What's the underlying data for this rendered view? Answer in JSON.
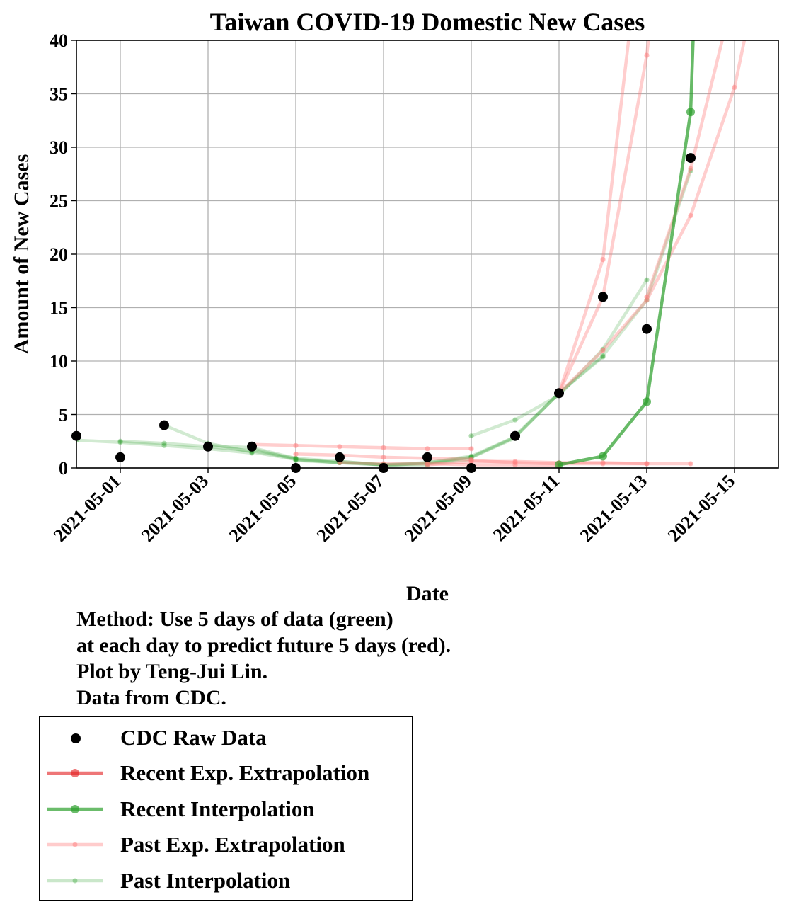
{
  "chart_data": {
    "type": "line",
    "title": "Taiwan COVID-19 Domestic New Cases",
    "xlabel": "Date",
    "ylabel": "Amount of New Cases",
    "xlim": [
      "2021-04-30",
      "2021-05-16"
    ],
    "ylim": [
      0,
      40
    ],
    "xticks": [
      "2021-05-01",
      "2021-05-03",
      "2021-05-05",
      "2021-05-07",
      "2021-05-09",
      "2021-05-11",
      "2021-05-13",
      "2021-05-15"
    ],
    "yticks": [
      0,
      5,
      10,
      15,
      20,
      25,
      30,
      35,
      40
    ],
    "grid": true,
    "legend_position": "below",
    "series": [
      {
        "name": "Past Interpolation",
        "color": "#2ca02c",
        "lines": [
          [
            [
              "2021-04-30",
              2.6
            ],
            [
              "2021-05-01",
              2.4
            ],
            [
              "2021-05-02",
              2.1
            ],
            [
              "2021-05-03",
              1.8
            ],
            [
              "2021-05-04",
              1.4
            ]
          ],
          [
            [
              "2021-05-01",
              2.5
            ],
            [
              "2021-05-02",
              2.3
            ],
            [
              "2021-05-03",
              2.0
            ],
            [
              "2021-05-04",
              1.6
            ],
            [
              "2021-05-05",
              0.9
            ]
          ],
          [
            [
              "2021-05-02",
              4.0
            ],
            [
              "2021-05-03",
              2.3
            ],
            [
              "2021-05-04",
              1.5
            ],
            [
              "2021-05-05",
              0.8
            ],
            [
              "2021-05-06",
              0.5
            ]
          ],
          [
            [
              "2021-05-03",
              2.1
            ],
            [
              "2021-05-04",
              1.9
            ],
            [
              "2021-05-05",
              0.9
            ],
            [
              "2021-05-06",
              0.6
            ],
            [
              "2021-05-07",
              0.3
            ]
          ],
          [
            [
              "2021-05-04",
              1.8
            ],
            [
              "2021-05-05",
              0.8
            ],
            [
              "2021-05-06",
              0.5
            ],
            [
              "2021-05-07",
              0.3
            ],
            [
              "2021-05-08",
              0.3
            ]
          ],
          [
            [
              "2021-05-05",
              0.7
            ],
            [
              "2021-05-06",
              0.5
            ],
            [
              "2021-05-07",
              0.3
            ],
            [
              "2021-05-08",
              0.4
            ],
            [
              "2021-05-09",
              0.8
            ]
          ],
          [
            [
              "2021-05-06",
              0.6
            ],
            [
              "2021-05-07",
              0.3
            ],
            [
              "2021-05-08",
              0.5
            ],
            [
              "2021-05-09",
              1.0
            ],
            [
              "2021-05-10",
              2.8
            ]
          ],
          [
            [
              "2021-05-07",
              0.2
            ],
            [
              "2021-05-08",
              0.5
            ],
            [
              "2021-05-09",
              1.1
            ],
            [
              "2021-05-10",
              2.9
            ],
            [
              "2021-05-11",
              7.0
            ]
          ],
          [
            [
              "2021-05-08",
              0.4
            ],
            [
              "2021-05-09",
              1.0
            ],
            [
              "2021-05-10",
              2.9
            ],
            [
              "2021-05-11",
              7.0
            ],
            [
              "2021-05-12",
              10.4
            ]
          ],
          [
            [
              "2021-05-09",
              3.0
            ],
            [
              "2021-05-10",
              4.5
            ],
            [
              "2021-05-11",
              6.8
            ],
            [
              "2021-05-12",
              11.1
            ],
            [
              "2021-05-13",
              17.6
            ]
          ],
          [
            [
              "2021-05-10",
              3.0
            ],
            [
              "2021-05-11",
              7.0
            ],
            [
              "2021-05-12",
              10.5
            ],
            [
              "2021-05-13",
              15.7
            ],
            [
              "2021-05-14",
              27.8
            ]
          ]
        ]
      },
      {
        "name": "Past Exp. Extrapolation",
        "color": "#ff7f7f",
        "lines": [
          [
            [
              "2021-05-04",
              2.2
            ],
            [
              "2021-05-05",
              2.1
            ],
            [
              "2021-05-06",
              2.0
            ],
            [
              "2021-05-07",
              1.9
            ],
            [
              "2021-05-08",
              1.8
            ],
            [
              "2021-05-09",
              1.8
            ]
          ],
          [
            [
              "2021-05-05",
              1.3
            ],
            [
              "2021-05-06",
              1.2
            ],
            [
              "2021-05-07",
              1.0
            ],
            [
              "2021-05-08",
              0.9
            ],
            [
              "2021-05-09",
              0.8
            ]
          ],
          [
            [
              "2021-05-06",
              0.5
            ],
            [
              "2021-05-07",
              0.4
            ],
            [
              "2021-05-08",
              0.4
            ],
            [
              "2021-05-09",
              0.3
            ],
            [
              "2021-05-10",
              0.3
            ],
            [
              "2021-05-11",
              0.2
            ]
          ],
          [
            [
              "2021-05-08",
              0.3
            ],
            [
              "2021-05-09",
              0.6
            ],
            [
              "2021-05-10",
              0.6
            ],
            [
              "2021-05-11",
              0.5
            ],
            [
              "2021-05-12",
              0.5
            ],
            [
              "2021-05-13",
              0.4
            ]
          ],
          [
            [
              "2021-05-09",
              0.7
            ],
            [
              "2021-05-10",
              0.5
            ],
            [
              "2021-05-11",
              0.4
            ],
            [
              "2021-05-12",
              0.4
            ],
            [
              "2021-05-13",
              0.4
            ],
            [
              "2021-05-14",
              0.4
            ]
          ],
          [
            [
              "2021-05-11",
              7.0
            ],
            [
              "2021-05-12",
              19.5
            ],
            [
              "2021-05-12.6",
              40.5
            ]
          ],
          [
            [
              "2021-05-11",
              7.0
            ],
            [
              "2021-05-12",
              16.0
            ],
            [
              "2021-05-13",
              38.6
            ],
            [
              "2021-05-13.05",
              40.5
            ]
          ],
          [
            [
              "2021-05-11",
              7.0
            ],
            [
              "2021-05-12",
              11.0
            ],
            [
              "2021-05-13",
              15.7
            ],
            [
              "2021-05-14",
              23.6
            ],
            [
              "2021-05-15",
              35.6
            ],
            [
              "2021-05-15.25",
              40.5
            ]
          ],
          [
            [
              "2021-05-13",
              16.0
            ],
            [
              "2021-05-14",
              28.0
            ],
            [
              "2021-05-14.75",
              40.5
            ]
          ]
        ]
      },
      {
        "name": "Recent Interpolation",
        "color": "#2ca02c",
        "points": [
          [
            "2021-05-11",
            0.3
          ],
          [
            "2021-05-12",
            1.1
          ],
          [
            "2021-05-13",
            6.2
          ],
          [
            "2021-05-14",
            33.3
          ],
          [
            "2021-05-14.06",
            40.5
          ]
        ]
      },
      {
        "name": "Recent Exp. Extrapolation",
        "color": "#e31a1c",
        "points": []
      },
      {
        "name": "CDC Raw Data",
        "color": "#000000",
        "points": [
          [
            "2021-04-30",
            3
          ],
          [
            "2021-05-01",
            1
          ],
          [
            "2021-05-02",
            4
          ],
          [
            "2021-05-03",
            2
          ],
          [
            "2021-05-04",
            2
          ],
          [
            "2021-05-05",
            0
          ],
          [
            "2021-05-06",
            1
          ],
          [
            "2021-05-07",
            0
          ],
          [
            "2021-05-08",
            1
          ],
          [
            "2021-05-09",
            0
          ],
          [
            "2021-05-10",
            3
          ],
          [
            "2021-05-11",
            7
          ],
          [
            "2021-05-12",
            16
          ],
          [
            "2021-05-13",
            13
          ],
          [
            "2021-05-14",
            29
          ]
        ]
      }
    ]
  },
  "notes": [
    "Method: Use 5 days of data (green)",
    "at each day to predict future 5 days (red).",
    "Plot by Teng-Jui Lin.",
    "Data from CDC."
  ],
  "legend": [
    {
      "label": "CDC Raw Data",
      "style": "dot",
      "color": "#000000"
    },
    {
      "label": "Recent Exp. Extrapolation",
      "style": "line-marker",
      "color": "#e31a1c"
    },
    {
      "label": "Recent Interpolation",
      "style": "line-marker",
      "color": "#2ca02c"
    },
    {
      "label": "Past Exp. Extrapolation",
      "style": "faint-line",
      "color": "#ff7f7f"
    },
    {
      "label": "Past Interpolation",
      "style": "faint-line",
      "color": "#2ca02c"
    }
  ]
}
